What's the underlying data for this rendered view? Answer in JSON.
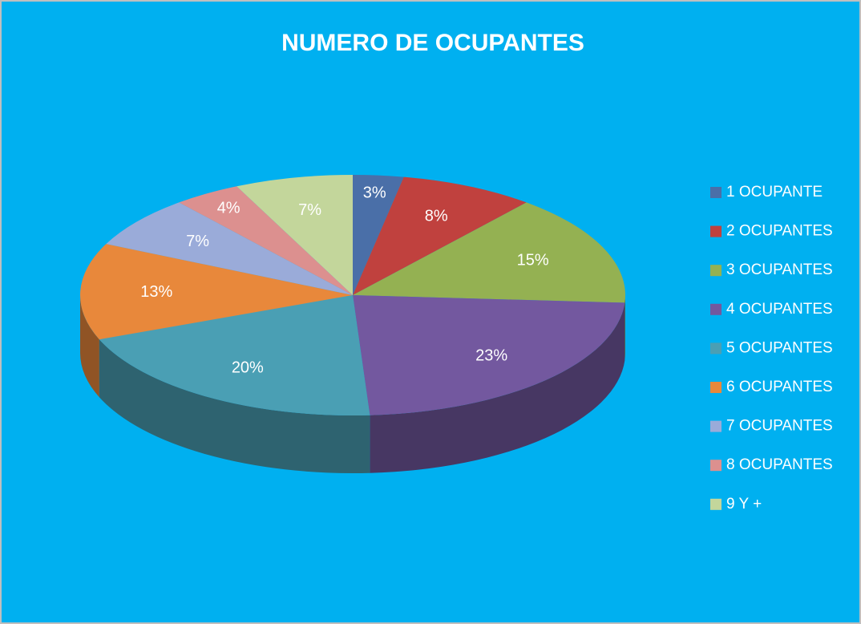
{
  "chart_data": {
    "type": "pie",
    "title": "NUMERO DE OCUPANTES",
    "categories": [
      "1 OCUPANTE",
      "2 OCUPANTES",
      "3 OCUPANTES",
      "4 OCUPANTES",
      "5 OCUPANTES",
      "6 OCUPANTES",
      "7 OCUPANTES",
      "8 OCUPANTES",
      "9 Y +"
    ],
    "values": [
      3,
      8,
      15,
      23,
      20,
      13,
      7,
      4,
      7
    ],
    "value_labels": [
      "3%",
      "8%",
      "15%",
      "23%",
      "20%",
      "13%",
      "7%",
      "4%",
      "7%"
    ],
    "colors": [
      "#4a6fa8",
      "#c0413e",
      "#94b152",
      "#73589f",
      "#4a9fb4",
      "#e8883b",
      "#9aabd9",
      "#dc908f",
      "#c3d69b"
    ],
    "legend": "right"
  }
}
